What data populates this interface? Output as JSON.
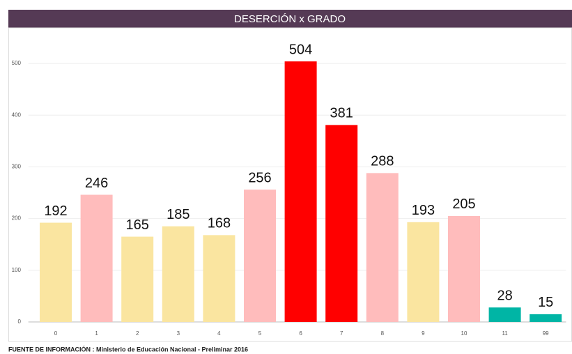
{
  "chart_data": {
    "type": "bar",
    "title": "DESERCIÓN x GRADO",
    "categories": [
      "0",
      "1",
      "2",
      "3",
      "4",
      "5",
      "6",
      "7",
      "8",
      "9",
      "10",
      "11",
      "99"
    ],
    "values": [
      192,
      246,
      165,
      185,
      168,
      256,
      504,
      381,
      288,
      193,
      205,
      28,
      15
    ],
    "colors": [
      "#fae5a0",
      "#ffbcbc",
      "#fae5a0",
      "#fae5a0",
      "#fae5a0",
      "#ffbcbc",
      "#ff0000",
      "#ff0000",
      "#ffbcbc",
      "#fae5a0",
      "#ffbcbc",
      "#00b5a5",
      "#00b5a5"
    ],
    "ylim": [
      0,
      550
    ],
    "yticks": [
      0,
      100,
      200,
      300,
      400,
      500
    ],
    "grid": true,
    "source": "FUENTE DE INFORMACIÓN : Ministerio de Educación Nacional - Preliminar 2016"
  }
}
